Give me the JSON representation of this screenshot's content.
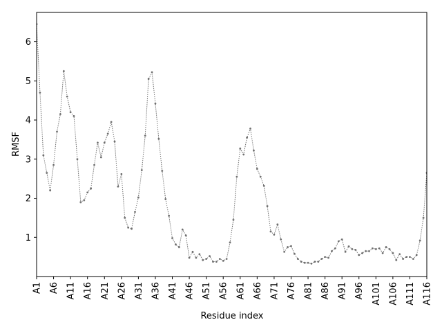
{
  "chart_data": {
    "type": "line",
    "title": "",
    "xlabel": "Residue index",
    "ylabel": "RMSF",
    "xlim": [
      1,
      116
    ],
    "ylim": [
      0,
      6.75
    ],
    "grid": false,
    "legend": "none",
    "line_style": "dotted",
    "color": "#6f6f6f",
    "x_ticks": [
      1,
      6,
      11,
      16,
      21,
      26,
      31,
      36,
      41,
      46,
      51,
      56,
      61,
      66,
      71,
      76,
      81,
      86,
      91,
      96,
      101,
      106,
      111,
      116
    ],
    "x_tick_labels": [
      "A1",
      "A6",
      "A11",
      "A16",
      "A21",
      "A26",
      "A31",
      "A36",
      "A41",
      "A46",
      "A51",
      "A56",
      "A61",
      "A66",
      "A71",
      "A76",
      "A81",
      "A86",
      "A91",
      "A96",
      "A101",
      "A106",
      "A111",
      "A116"
    ],
    "y_ticks": [
      1,
      2,
      3,
      4,
      5,
      6
    ],
    "y_tick_labels": [
      "1",
      "2",
      "3",
      "4",
      "5",
      "6"
    ],
    "series": [
      {
        "values": [
          6.45,
          4.7,
          3.1,
          2.65,
          2.2,
          2.85,
          3.7,
          4.15,
          5.25,
          4.6,
          4.2,
          4.1,
          3.0,
          1.9,
          1.95,
          2.15,
          2.25,
          2.85,
          3.42,
          3.05,
          3.42,
          3.65,
          3.95,
          3.45,
          2.3,
          2.62,
          1.5,
          1.25,
          1.22,
          1.65,
          2.02,
          2.72,
          3.6,
          5.05,
          5.22,
          4.42,
          3.52,
          2.7,
          1.98,
          1.55,
          0.98,
          0.82,
          0.75,
          1.2,
          1.05,
          0.48,
          0.63,
          0.48,
          0.57,
          0.42,
          0.45,
          0.52,
          0.38,
          0.38,
          0.45,
          0.4,
          0.45,
          0.87,
          1.45,
          2.55,
          3.27,
          3.12,
          3.55,
          3.78,
          3.22,
          2.75,
          2.55,
          2.32,
          1.8,
          1.15,
          1.07,
          1.33,
          0.95,
          0.63,
          0.75,
          0.78,
          0.58,
          0.45,
          0.38,
          0.35,
          0.35,
          0.33,
          0.38,
          0.38,
          0.45,
          0.5,
          0.48,
          0.65,
          0.72,
          0.9,
          0.95,
          0.63,
          0.77,
          0.7,
          0.68,
          0.55,
          0.6,
          0.65,
          0.65,
          0.72,
          0.7,
          0.72,
          0.6,
          0.75,
          0.7,
          0.6,
          0.42,
          0.57,
          0.45,
          0.5,
          0.5,
          0.45,
          0.55,
          0.92,
          1.5,
          2.65
        ]
      }
    ]
  }
}
